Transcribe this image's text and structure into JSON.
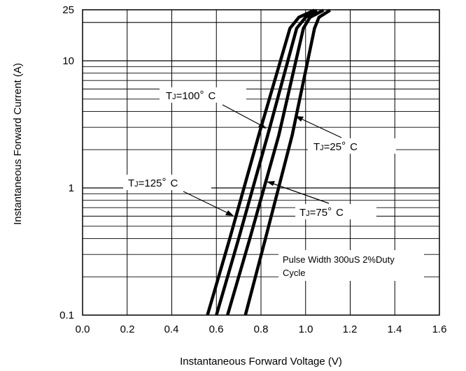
{
  "chart_data": {
    "type": "line",
    "xlabel": "Instantaneous Forward Voltage (V)",
    "ylabel": "Instantaneous Forward Current (A)",
    "xlim": [
      0.0,
      1.6
    ],
    "ylim": [
      0.1,
      25
    ],
    "yscale": "log",
    "grid": true,
    "x_ticks": [
      "0.0",
      "0.2",
      "0.4",
      "0.6",
      "0.8",
      "1.0",
      "1.2",
      "1.4",
      "1.6"
    ],
    "y_ticks": [
      "0.1",
      "1",
      "10",
      "25"
    ],
    "series": [
      {
        "name": "TJ=125° C",
        "x": [
          0.56,
          0.66,
          0.79,
          0.93,
          0.97,
          1.04
        ],
        "y": [
          0.1,
          0.4,
          2.6,
          18,
          22,
          25
        ]
      },
      {
        "name": "TJ=100° C",
        "x": [
          0.6,
          0.7,
          0.83,
          0.96,
          1.0,
          1.05
        ],
        "y": [
          0.1,
          0.4,
          2.6,
          18,
          22,
          25
        ]
      },
      {
        "name": "TJ=75° C",
        "x": [
          0.65,
          0.75,
          0.88,
          0.99,
          1.02,
          1.08
        ],
        "y": [
          0.1,
          0.4,
          2.6,
          18,
          22,
          25
        ]
      },
      {
        "name": "TJ=25° C",
        "x": [
          0.73,
          0.82,
          0.94,
          1.04,
          1.06,
          1.11
        ],
        "y": [
          0.1,
          0.4,
          2.6,
          18,
          22,
          25
        ]
      }
    ],
    "annotations": {
      "t100": {
        "sub": "J",
        "value": "=100",
        "deg": "°",
        "unit": "C"
      },
      "t25": {
        "sub": "J",
        "value": "=25",
        "deg": "°",
        "unit": "C"
      },
      "t125": {
        "sub": "J",
        "value": "=125",
        "deg": "°",
        "unit": "C"
      },
      "t75": {
        "sub": "J",
        "value": "=75",
        "deg": "°",
        "unit": "C"
      },
      "note_line1": "Pulse Width 300uS 2%Duty",
      "note_line2": "Cycle"
    }
  }
}
